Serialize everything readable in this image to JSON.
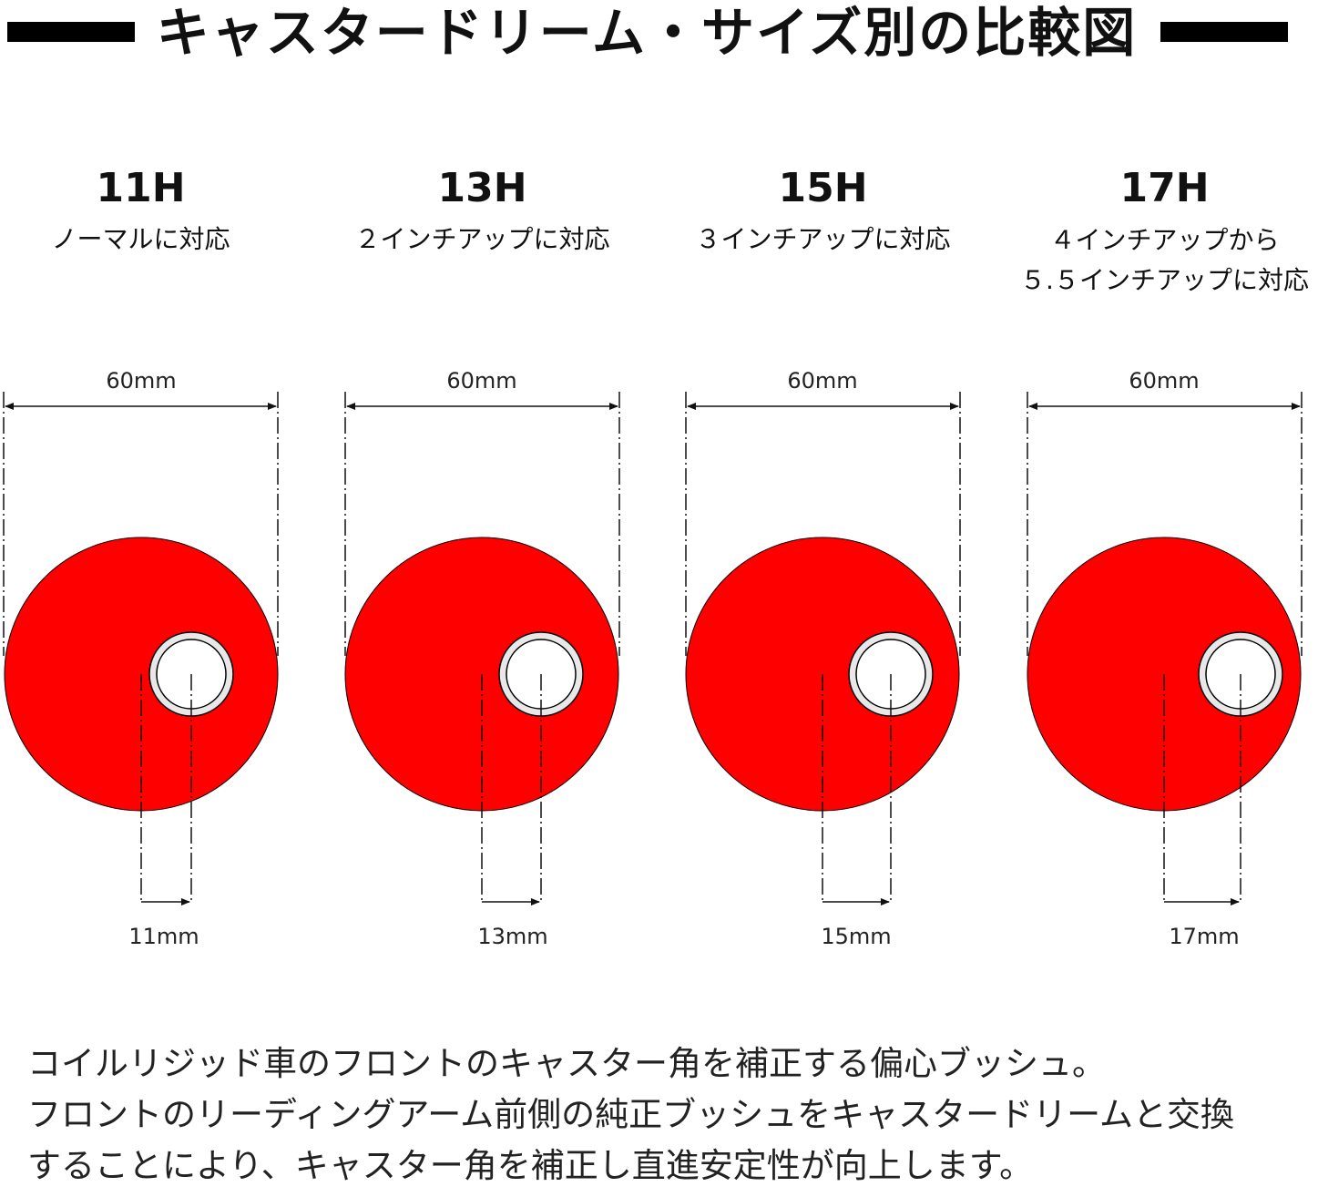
{
  "title": "キャスタードリーム・サイズ別の比較図",
  "colors": {
    "bushing": "#ff0000",
    "ring": "#e8e8e8",
    "bar": "#000000"
  },
  "models": [
    {
      "name": "11H",
      "desc": [
        "ノーマルに対応"
      ],
      "diameter": "60mm",
      "offset": "11mm",
      "offset_value": 11
    },
    {
      "name": "13H",
      "desc": [
        "２インチアップに対応"
      ],
      "diameter": "60mm",
      "offset": "13mm",
      "offset_value": 13
    },
    {
      "name": "15H",
      "desc": [
        "３インチアップに対応"
      ],
      "diameter": "60mm",
      "offset": "15mm",
      "offset_value": 15
    },
    {
      "name": "17H",
      "desc": [
        "４インチアップから",
        "５.５インチアップに対応"
      ],
      "diameter": "60mm",
      "offset": "17mm",
      "offset_value": 17
    }
  ],
  "description": [
    "コイルリジッド車のフロントのキャスター角を補正する偏心ブッシュ。",
    "フロントのリーディングアーム前側の純正ブッシュをキャスタードリームと交換",
    "することにより、キャスター角を補正し直進安定性が向上します。"
  ]
}
